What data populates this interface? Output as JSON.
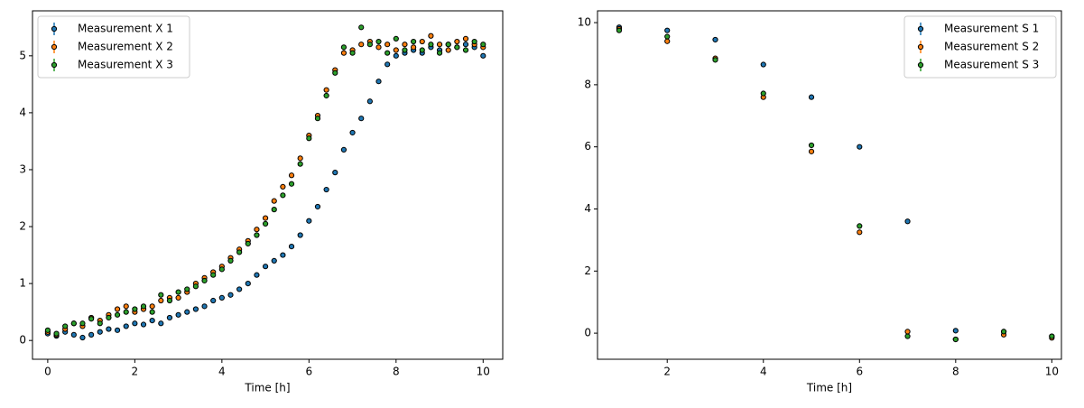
{
  "chart_data": [
    {
      "type": "scatter",
      "xlabel": "Time [h]",
      "legend": "upper left",
      "xlim": [
        -0.35,
        10.45
      ],
      "ylim": [
        -0.33,
        5.79
      ],
      "xticks": [
        0,
        2,
        4,
        6,
        8,
        10
      ],
      "yticks": [
        0,
        1,
        2,
        3,
        4,
        5
      ],
      "x": [
        0,
        0.2,
        0.4,
        0.6,
        0.8,
        1,
        1.2,
        1.4,
        1.6,
        1.8,
        2,
        2.2,
        2.4,
        2.6,
        2.8,
        3,
        3.2,
        3.4,
        3.6,
        3.8,
        4,
        4.2,
        4.4,
        4.6,
        4.8,
        5,
        5.2,
        5.4,
        5.6,
        5.8,
        6,
        6.2,
        6.4,
        6.6,
        6.8,
        7,
        7.2,
        7.4,
        7.6,
        7.8,
        8,
        8.2,
        8.4,
        8.6,
        8.8,
        9,
        9.2,
        9.4,
        9.6,
        9.8,
        10
      ],
      "series": [
        {
          "name": "Measurement X 1",
          "color": "#1f77b4",
          "values": [
            0.12,
            0.08,
            0.15,
            0.1,
            0.05,
            0.1,
            0.15,
            0.2,
            0.18,
            0.25,
            0.3,
            0.28,
            0.35,
            0.3,
            0.4,
            0.45,
            0.5,
            0.55,
            0.6,
            0.7,
            0.75,
            0.8,
            0.9,
            1.0,
            1.15,
            1.3,
            1.4,
            1.5,
            1.65,
            1.85,
            2.1,
            2.35,
            2.65,
            2.95,
            3.35,
            3.65,
            3.9,
            4.2,
            4.55,
            4.85,
            5.0,
            5.05,
            5.1,
            5.05,
            5.15,
            5.1,
            5.2,
            5.15,
            5.2,
            5.15,
            5.0
          ]
        },
        {
          "name": "Measurement X 2",
          "color": "#ff7f0e",
          "values": [
            0.15,
            0.1,
            0.2,
            0.3,
            0.25,
            0.4,
            0.35,
            0.45,
            0.55,
            0.6,
            0.5,
            0.55,
            0.6,
            0.7,
            0.75,
            0.75,
            0.85,
            1.0,
            1.1,
            1.2,
            1.3,
            1.45,
            1.6,
            1.75,
            1.95,
            2.15,
            2.45,
            2.7,
            2.9,
            3.2,
            3.6,
            3.95,
            4.4,
            4.75,
            5.05,
            5.1,
            5.2,
            5.25,
            5.15,
            5.2,
            5.1,
            5.2,
            5.15,
            5.25,
            5.35,
            5.2,
            5.1,
            5.25,
            5.3,
            5.2,
            5.15
          ]
        },
        {
          "name": "Measurement X 3",
          "color": "#2ca02c",
          "values": [
            0.18,
            0.12,
            0.25,
            0.3,
            0.3,
            0.38,
            0.3,
            0.4,
            0.45,
            0.5,
            0.55,
            0.6,
            0.5,
            0.8,
            0.7,
            0.85,
            0.9,
            0.95,
            1.05,
            1.15,
            1.25,
            1.4,
            1.55,
            1.7,
            1.85,
            2.05,
            2.3,
            2.55,
            2.75,
            3.1,
            3.55,
            3.9,
            4.3,
            4.7,
            5.15,
            5.05,
            5.5,
            5.2,
            5.25,
            5.05,
            5.3,
            5.1,
            5.25,
            5.1,
            5.2,
            5.05,
            5.2,
            5.15,
            5.1,
            5.25,
            5.2
          ]
        }
      ]
    },
    {
      "type": "scatter",
      "xlabel": "Time [h]",
      "legend": "upper right",
      "xlim": [
        0.55,
        10.2
      ],
      "ylim": [
        -0.84,
        10.38
      ],
      "xticks": [
        2,
        4,
        6,
        8,
        10
      ],
      "yticks": [
        0,
        2,
        4,
        6,
        8,
        10
      ],
      "x": [
        1,
        2,
        3,
        4,
        5,
        6,
        7,
        8,
        9,
        10
      ],
      "series": [
        {
          "name": "Measurement S 1",
          "color": "#1f77b4",
          "values": [
            9.85,
            9.75,
            9.45,
            8.65,
            7.6,
            6.0,
            3.6,
            0.08,
            0.05,
            -0.1
          ]
        },
        {
          "name": "Measurement S 2",
          "color": "#ff7f0e",
          "values": [
            9.8,
            9.4,
            8.85,
            7.6,
            5.85,
            3.25,
            0.05,
            -0.2,
            -0.05,
            -0.15
          ]
        },
        {
          "name": "Measurement S 3",
          "color": "#2ca02c",
          "values": [
            9.75,
            9.55,
            8.8,
            7.72,
            6.05,
            3.45,
            -0.1,
            -0.2,
            0.05,
            -0.1
          ]
        }
      ]
    }
  ]
}
